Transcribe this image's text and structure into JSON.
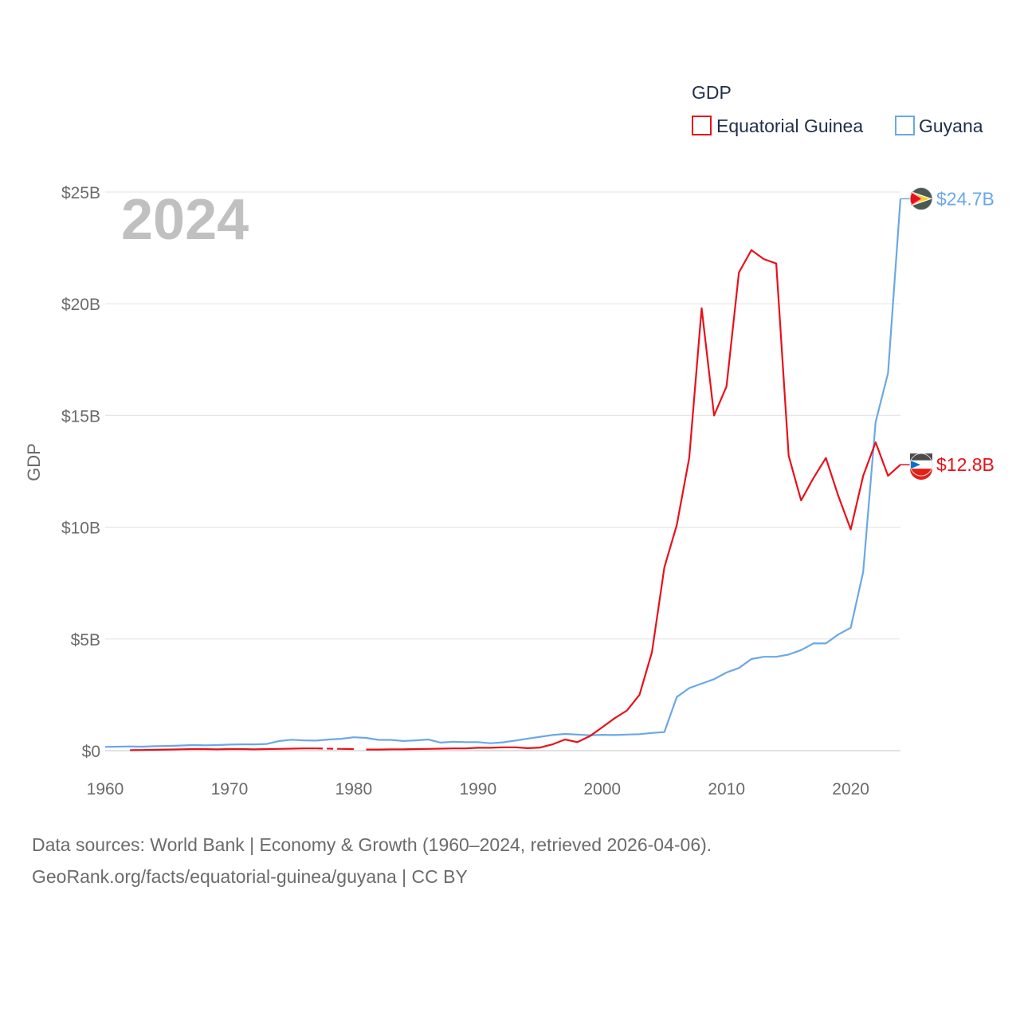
{
  "chart_data": {
    "type": "line",
    "title": "GDP",
    "ylabel": "GDP",
    "xlabel": "",
    "year_watermark": "2024",
    "xlim": [
      1960,
      2024
    ],
    "ylim": [
      0,
      25
    ],
    "x_ticks": [
      {
        "value": 1960,
        "label": "1960"
      },
      {
        "value": 1970,
        "label": "1970"
      },
      {
        "value": 1980,
        "label": "1980"
      },
      {
        "value": 1990,
        "label": "1990"
      },
      {
        "value": 2000,
        "label": "2000"
      },
      {
        "value": 2010,
        "label": "2010"
      },
      {
        "value": 2020,
        "label": "2020"
      }
    ],
    "y_ticks": [
      {
        "value": 0,
        "label": "$0"
      },
      {
        "value": 5,
        "label": "$5B"
      },
      {
        "value": 10,
        "label": "$10B"
      },
      {
        "value": 15,
        "label": "$15B"
      },
      {
        "value": 20,
        "label": "$20B"
      },
      {
        "value": 25,
        "label": "$25B"
      }
    ],
    "units": "billion USD",
    "series": [
      {
        "name": "Equatorial Guinea",
        "color": "#e8101a",
        "end_label": "$12.8B",
        "flag": "equatorial-guinea-flag-icon",
        "segments": [
          [
            [
              1962,
              0.02
            ],
            [
              1963,
              0.03
            ],
            [
              1964,
              0.04
            ],
            [
              1965,
              0.05
            ],
            [
              1966,
              0.06
            ],
            [
              1967,
              0.07
            ],
            [
              1968,
              0.07
            ],
            [
              1969,
              0.06
            ],
            [
              1970,
              0.07
            ],
            [
              1971,
              0.07
            ],
            [
              1972,
              0.06
            ],
            [
              1973,
              0.07
            ],
            [
              1974,
              0.08
            ],
            [
              1975,
              0.09
            ],
            [
              1976,
              0.1
            ],
            [
              1977,
              0.1
            ]
          ],
          [
            [
              1979,
              0.08
            ],
            [
              1980,
              0.07
            ]
          ],
          [
            [
              1981,
              0.05
            ],
            [
              1982,
              0.05
            ],
            [
              1983,
              0.06
            ],
            [
              1984,
              0.06
            ],
            [
              1985,
              0.07
            ],
            [
              1986,
              0.08
            ],
            [
              1987,
              0.09
            ],
            [
              1988,
              0.1
            ],
            [
              1989,
              0.1
            ],
            [
              1990,
              0.13
            ],
            [
              1991,
              0.13
            ],
            [
              1992,
              0.15
            ],
            [
              1993,
              0.15
            ],
            [
              1994,
              0.11
            ],
            [
              1995,
              0.14
            ],
            [
              1996,
              0.28
            ],
            [
              1997,
              0.5
            ],
            [
              1998,
              0.38
            ],
            [
              1999,
              0.65
            ],
            [
              2000,
              1.05
            ],
            [
              2001,
              1.45
            ],
            [
              2002,
              1.8
            ],
            [
              2003,
              2.5
            ],
            [
              2004,
              4.4
            ],
            [
              2005,
              8.2
            ],
            [
              2006,
              10.1
            ],
            [
              2007,
              13.1
            ],
            [
              2008,
              19.8
            ],
            [
              2009,
              15.0
            ],
            [
              2010,
              16.3
            ],
            [
              2011,
              21.4
            ],
            [
              2012,
              22.4
            ],
            [
              2013,
              22.0
            ],
            [
              2014,
              21.8
            ],
            [
              2015,
              13.2
            ],
            [
              2016,
              11.2
            ],
            [
              2017,
              12.2
            ],
            [
              2018,
              13.1
            ],
            [
              2019,
              11.4
            ],
            [
              2020,
              9.9
            ],
            [
              2021,
              12.3
            ],
            [
              2022,
              13.8
            ],
            [
              2023,
              12.3
            ],
            [
              2024,
              12.8
            ]
          ]
        ],
        "gap_segments": [
          [
            [
              1977,
              0.1
            ],
            [
              1979,
              0.08
            ]
          ]
        ]
      },
      {
        "name": "Guyana",
        "color": "#6aa8e6",
        "end_label": "$24.7B",
        "flag": "guyana-flag-icon",
        "segments": [
          [
            [
              1960,
              0.17
            ],
            [
              1961,
              0.18
            ],
            [
              1962,
              0.19
            ],
            [
              1963,
              0.18
            ],
            [
              1964,
              0.2
            ],
            [
              1965,
              0.21
            ],
            [
              1966,
              0.23
            ],
            [
              1967,
              0.25
            ],
            [
              1968,
              0.24
            ],
            [
              1969,
              0.25
            ],
            [
              1970,
              0.27
            ],
            [
              1971,
              0.28
            ],
            [
              1972,
              0.28
            ],
            [
              1973,
              0.3
            ],
            [
              1974,
              0.43
            ],
            [
              1975,
              0.49
            ],
            [
              1976,
              0.46
            ],
            [
              1977,
              0.45
            ],
            [
              1978,
              0.5
            ],
            [
              1979,
              0.53
            ],
            [
              1980,
              0.6
            ],
            [
              1981,
              0.57
            ],
            [
              1982,
              0.48
            ],
            [
              1983,
              0.48
            ],
            [
              1984,
              0.43
            ],
            [
              1985,
              0.46
            ],
            [
              1986,
              0.5
            ],
            [
              1987,
              0.36
            ],
            [
              1988,
              0.4
            ],
            [
              1989,
              0.38
            ],
            [
              1990,
              0.38
            ],
            [
              1991,
              0.33
            ],
            [
              1992,
              0.37
            ],
            [
              1993,
              0.45
            ],
            [
              1994,
              0.54
            ],
            [
              1995,
              0.62
            ],
            [
              1996,
              0.7
            ],
            [
              1997,
              0.75
            ],
            [
              1998,
              0.72
            ],
            [
              1999,
              0.69
            ],
            [
              2000,
              0.71
            ],
            [
              2001,
              0.7
            ],
            [
              2002,
              0.72
            ],
            [
              2003,
              0.74
            ],
            [
              2004,
              0.79
            ],
            [
              2005,
              0.83
            ],
            [
              2006,
              2.4
            ],
            [
              2007,
              2.8
            ],
            [
              2008,
              3.0
            ],
            [
              2009,
              3.2
            ],
            [
              2010,
              3.5
            ],
            [
              2011,
              3.7
            ],
            [
              2012,
              4.1
            ],
            [
              2013,
              4.2
            ],
            [
              2014,
              4.2
            ],
            [
              2015,
              4.3
            ],
            [
              2016,
              4.5
            ],
            [
              2017,
              4.8
            ],
            [
              2018,
              4.8
            ],
            [
              2019,
              5.2
            ],
            [
              2020,
              5.5
            ],
            [
              2021,
              8.0
            ],
            [
              2022,
              14.7
            ],
            [
              2023,
              16.9
            ],
            [
              2024,
              24.7
            ]
          ]
        ],
        "gap_segments": []
      }
    ],
    "legend": {
      "title": "GDP",
      "position": "top-right"
    }
  },
  "footer": {
    "line1": "Data sources: World Bank | Economy & Growth (1960–2024, retrieved 2026-04-06).",
    "line2": "GeoRank.org/facts/equatorial-guinea/guyana | CC BY"
  }
}
